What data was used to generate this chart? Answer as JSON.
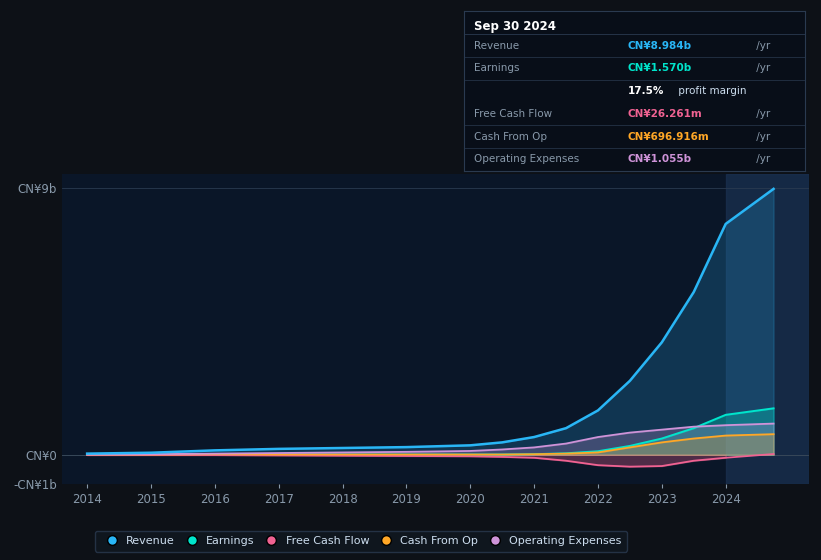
{
  "background_color": "#0d1117",
  "plot_bg_color": "#0a1628",
  "title": "Sep 30 2024",
  "years": [
    2014,
    2015,
    2016,
    2017,
    2018,
    2019,
    2020,
    2020.5,
    2021,
    2021.5,
    2022,
    2022.5,
    2023,
    2023.5,
    2024,
    2024.75
  ],
  "revenue": [
    0.04,
    0.07,
    0.15,
    0.2,
    0.23,
    0.26,
    0.32,
    0.42,
    0.6,
    0.9,
    1.5,
    2.5,
    3.8,
    5.5,
    7.8,
    8.984
  ],
  "earnings": [
    0.0,
    0.0,
    0.01,
    0.01,
    0.01,
    0.01,
    0.01,
    0.01,
    0.02,
    0.05,
    0.12,
    0.3,
    0.55,
    0.9,
    1.35,
    1.57
  ],
  "free_cash_flow": [
    -0.01,
    -0.01,
    -0.01,
    -0.02,
    -0.03,
    -0.04,
    -0.05,
    -0.07,
    -0.1,
    -0.2,
    -0.35,
    -0.4,
    -0.38,
    -0.2,
    -0.1,
    0.026
  ],
  "cash_from_op": [
    0.01,
    0.01,
    0.02,
    0.01,
    0.01,
    0.01,
    0.01,
    0.01,
    0.02,
    0.04,
    0.08,
    0.25,
    0.42,
    0.55,
    0.65,
    0.697
  ],
  "operating_expenses": [
    0.01,
    0.02,
    0.04,
    0.06,
    0.08,
    0.1,
    0.13,
    0.18,
    0.25,
    0.38,
    0.6,
    0.75,
    0.85,
    0.95,
    1.0,
    1.055
  ],
  "revenue_color": "#29b6f6",
  "earnings_color": "#00e5cc",
  "fcf_color": "#f06292",
  "cashop_color": "#ffa726",
  "opex_color": "#ce93d8",
  "ylim_min": -1.0,
  "ylim_max": 9.5,
  "xlim_min": 2013.6,
  "xlim_max": 2025.3,
  "yticks": [
    -1,
    0,
    9
  ],
  "ytick_labels": [
    "-CN¥1b",
    "CN¥0",
    "CN¥9b"
  ],
  "xticks": [
    2014,
    2015,
    2016,
    2017,
    2018,
    2019,
    2020,
    2021,
    2022,
    2023,
    2024
  ],
  "highlight_start": 2024.0,
  "legend_labels": [
    "Revenue",
    "Earnings",
    "Free Cash Flow",
    "Cash From Op",
    "Operating Expenses"
  ],
  "legend_colors": [
    "#29b6f6",
    "#00e5cc",
    "#f06292",
    "#ffa726",
    "#ce93d8"
  ],
  "info_box": {
    "title": "Sep 30 2024",
    "rows": [
      {
        "label": "Revenue",
        "value": "CN¥8.984b",
        "suffix": " /yr",
        "vcolor": "#29b6f6"
      },
      {
        "label": "Earnings",
        "value": "CN¥1.570b",
        "suffix": " /yr",
        "vcolor": "#00e5cc"
      },
      {
        "label": "",
        "value": "17.5%",
        "suffix": " profit margin",
        "vcolor": "#ffffff",
        "is_margin": true
      },
      {
        "label": "Free Cash Flow",
        "value": "CN¥26.261m",
        "suffix": " /yr",
        "vcolor": "#f06292"
      },
      {
        "label": "Cash From Op",
        "value": "CN¥696.916m",
        "suffix": " /yr",
        "vcolor": "#ffa726"
      },
      {
        "label": "Operating Expenses",
        "value": "CN¥1.055b",
        "suffix": " /yr",
        "vcolor": "#ce93d8"
      }
    ]
  }
}
